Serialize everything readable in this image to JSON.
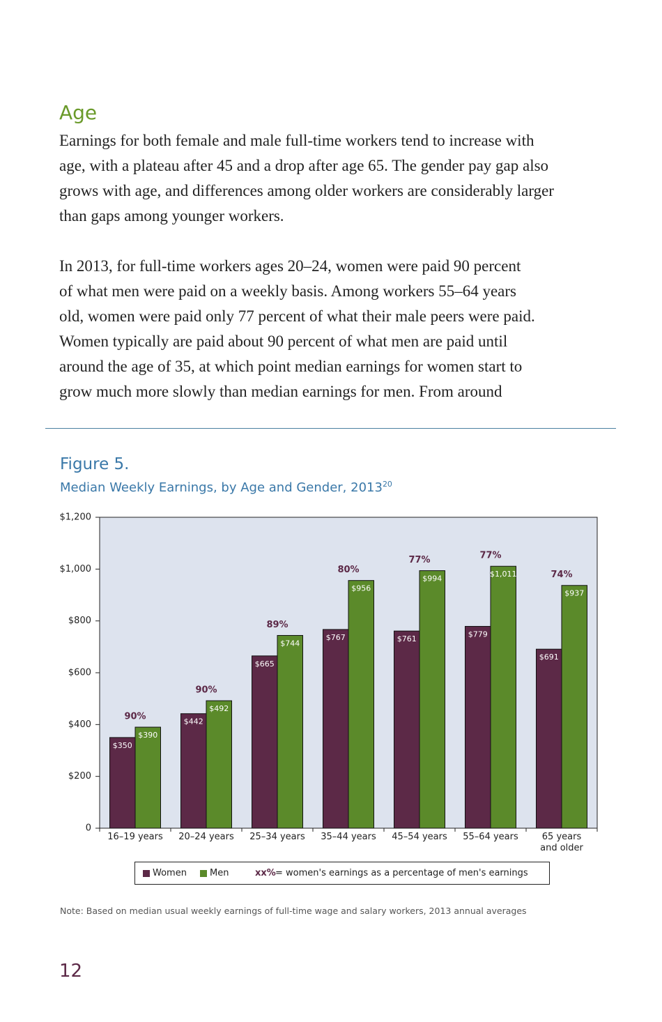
{
  "heading": "Age",
  "paragraphs": [
    [
      "Earnings for both female and male full-time workers tend to increase with",
      "age, with a plateau after 45 and a drop after age 65. The gender pay gap also",
      "grows with age, and differences among older workers are considerably larger",
      "than gaps among younger workers."
    ],
    [
      "In 2013, for full-time workers ages 20–24, women were paid 90 percent",
      "of what men were paid on a weekly basis. Among workers 55–64 years",
      "old, women were paid only 77 percent of what their male peers were paid.",
      "Women typically are paid about 90 percent of what men are paid until",
      "around the age of 35, at which point median earnings for women start to",
      "grow much more slowly than median earnings for men. From around"
    ]
  ],
  "chart_data": {
    "type": "bar",
    "figure_label": "Figure 5.",
    "title": "Median Weekly Earnings, by Age and Gender, 2013",
    "footnote_ref": "20",
    "categories": [
      "16–19 years",
      "20–24 years",
      "25–34 years",
      "35–44 years",
      "45–54 years",
      "55–64 years",
      "65 years\nand older"
    ],
    "series": [
      {
        "name": "Women",
        "color": "#5c2947",
        "values": [
          350,
          442,
          665,
          767,
          761,
          779,
          691
        ],
        "value_labels": [
          "$350",
          "$442",
          "$665",
          "$767",
          "$761",
          "$779",
          "$691"
        ]
      },
      {
        "name": "Men",
        "color": "#5b8a2a",
        "values": [
          390,
          492,
          744,
          956,
          994,
          1011,
          937
        ],
        "value_labels": [
          "$390",
          "$492",
          "$744",
          "$956",
          "$994",
          "$1,011",
          "$937"
        ]
      }
    ],
    "gap_labels": [
      "90%",
      "90%",
      "89%",
      "80%",
      "77%",
      "77%",
      "74%"
    ],
    "ylim": [
      0,
      1200
    ],
    "yticks": [
      0,
      {
        "value": 200,
        "label": "$200"
      },
      {
        "value": 400,
        "label": "$400"
      },
      {
        "value": 600,
        "label": "$600"
      },
      {
        "value": 800,
        "label": "$800"
      },
      {
        "value": 1000,
        "label": "$1,000"
      },
      {
        "value": 1200,
        "label": "$1,200"
      }
    ],
    "grid": false,
    "legend_key": "xx%",
    "legend_note": "= women's earnings as a percentage of men's earnings",
    "note": "Note: Based on median usual weekly earnings of full-time wage and salary workers, 2013 annual averages"
  },
  "page_number": "12"
}
